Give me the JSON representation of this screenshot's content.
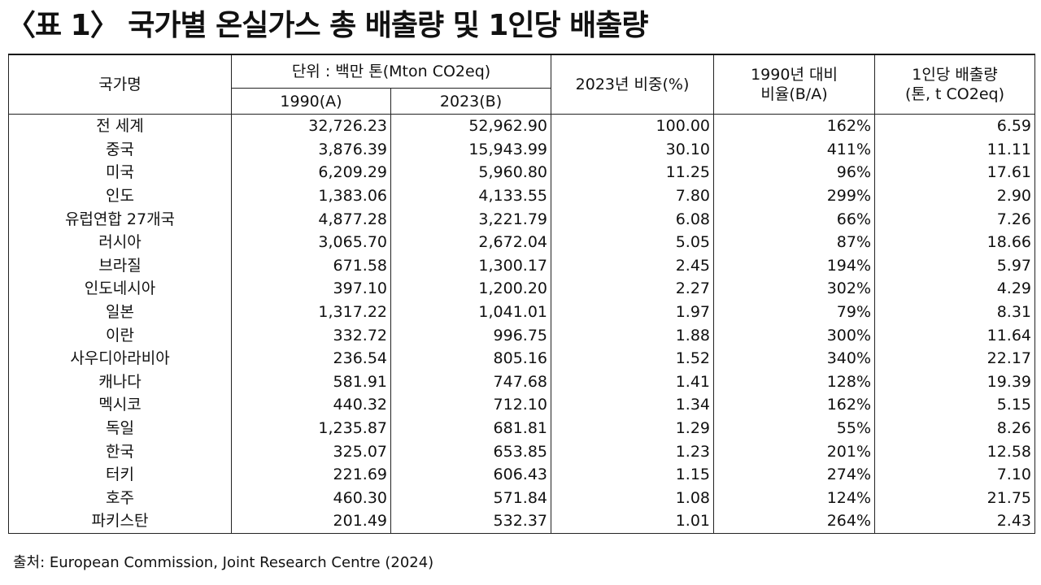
{
  "title": "〈표 1〉 국가별 온실가스 총 배출량 및 1인당 배출량",
  "table": {
    "header": {
      "country": "국가명",
      "unit": "단위 : 백만 톤(Mton CO2eq)",
      "y1990": "1990(A)",
      "y2023": "2023(B)",
      "share": "2023년 비중(%)",
      "ratio_line1": "1990년 대비",
      "ratio_line2": "비율(B/A)",
      "percap_line1": "1인당 배출량",
      "percap_line2": "(톤, t CO2eq)"
    },
    "rows": [
      {
        "country": "전 세계",
        "y1990": "32,726.23",
        "y2023": "52,962.90",
        "share": "100.00",
        "ratio": "162%",
        "percap": "6.59"
      },
      {
        "country": "중국",
        "y1990": "3,876.39",
        "y2023": "15,943.99",
        "share": "30.10",
        "ratio": "411%",
        "percap": "11.11"
      },
      {
        "country": "미국",
        "y1990": "6,209.29",
        "y2023": "5,960.80",
        "share": "11.25",
        "ratio": "96%",
        "percap": "17.61"
      },
      {
        "country": "인도",
        "y1990": "1,383.06",
        "y2023": "4,133.55",
        "share": "7.80",
        "ratio": "299%",
        "percap": "2.90"
      },
      {
        "country": "유럽연합 27개국",
        "y1990": "4,877.28",
        "y2023": "3,221.79",
        "share": "6.08",
        "ratio": "66%",
        "percap": "7.26"
      },
      {
        "country": "러시아",
        "y1990": "3,065.70",
        "y2023": "2,672.04",
        "share": "5.05",
        "ratio": "87%",
        "percap": "18.66"
      },
      {
        "country": "브라질",
        "y1990": "671.58",
        "y2023": "1,300.17",
        "share": "2.45",
        "ratio": "194%",
        "percap": "5.97"
      },
      {
        "country": "인도네시아",
        "y1990": "397.10",
        "y2023": "1,200.20",
        "share": "2.27",
        "ratio": "302%",
        "percap": "4.29"
      },
      {
        "country": "일본",
        "y1990": "1,317.22",
        "y2023": "1,041.01",
        "share": "1.97",
        "ratio": "79%",
        "percap": "8.31"
      },
      {
        "country": "이란",
        "y1990": "332.72",
        "y2023": "996.75",
        "share": "1.88",
        "ratio": "300%",
        "percap": "11.64"
      },
      {
        "country": "사우디아라비아",
        "y1990": "236.54",
        "y2023": "805.16",
        "share": "1.52",
        "ratio": "340%",
        "percap": "22.17"
      },
      {
        "country": "캐나다",
        "y1990": "581.91",
        "y2023": "747.68",
        "share": "1.41",
        "ratio": "128%",
        "percap": "19.39"
      },
      {
        "country": "멕시코",
        "y1990": "440.32",
        "y2023": "712.10",
        "share": "1.34",
        "ratio": "162%",
        "percap": "5.15"
      },
      {
        "country": "독일",
        "y1990": "1,235.87",
        "y2023": "681.81",
        "share": "1.29",
        "ratio": "55%",
        "percap": "8.26"
      },
      {
        "country": "한국",
        "y1990": "325.07",
        "y2023": "653.85",
        "share": "1.23",
        "ratio": "201%",
        "percap": "12.58"
      },
      {
        "country": "터키",
        "y1990": "221.69",
        "y2023": "606.43",
        "share": "1.15",
        "ratio": "274%",
        "percap": "7.10"
      },
      {
        "country": "호주",
        "y1990": "460.30",
        "y2023": "571.84",
        "share": "1.08",
        "ratio": "124%",
        "percap": "21.75"
      },
      {
        "country": "파키스탄",
        "y1990": "201.49",
        "y2023": "532.37",
        "share": "1.01",
        "ratio": "264%",
        "percap": "2.43"
      }
    ]
  },
  "source": "출처: European Commission, Joint Research Centre (2024)"
}
